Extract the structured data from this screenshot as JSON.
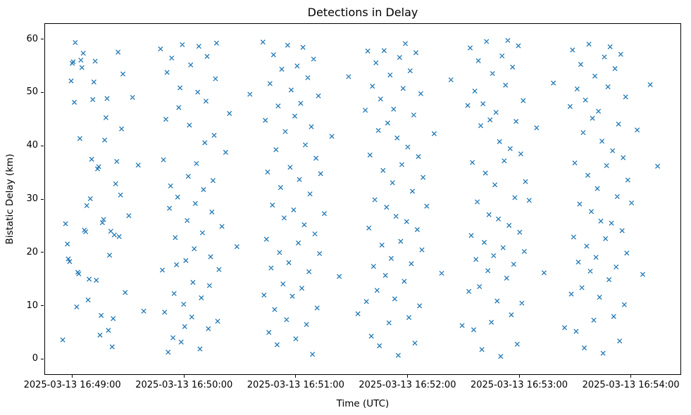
{
  "chart_data": {
    "type": "scatter",
    "title": "Detections in Delay",
    "xlabel": "Time (UTC)",
    "ylabel": "Bistatic Delay (km)",
    "legend": "none",
    "grid": false,
    "marker": "x",
    "marker_color": "#1f77b4",
    "ylim": [
      -3,
      63
    ],
    "yticks": [
      0,
      10,
      20,
      30,
      40,
      50,
      60
    ],
    "x_axis": {
      "t_range_seconds": [
        0,
        342
      ],
      "t_zero": "2025-03-13 16:48:45",
      "tick_t_seconds": [
        15,
        75,
        135,
        195,
        255,
        315
      ],
      "tick_labels": [
        "2025-03-13 16:49:00",
        "2025-03-13 16:50:00",
        "2025-03-13 16:51:00",
        "2025-03-13 16:52:00",
        "2025-03-13 16:53:00",
        "2025-03-13 16:54:00"
      ]
    },
    "points_format": [
      "seconds_after_t_zero",
      "bistatic_delay_km"
    ],
    "points": [
      [
        9.5,
        3.7
      ],
      [
        11,
        25.5
      ],
      [
        12,
        21.7
      ],
      [
        12.5,
        18.9
      ],
      [
        13.2,
        18.4
      ],
      [
        14,
        52.3
      ],
      [
        14.6,
        55.6
      ],
      [
        15.1,
        55.9
      ],
      [
        15.7,
        48.3
      ],
      [
        16.2,
        59.5
      ],
      [
        17,
        9.9
      ],
      [
        17.6,
        16.4
      ],
      [
        18.1,
        16.1
      ],
      [
        18.7,
        41.5
      ],
      [
        19.2,
        56.2
      ],
      [
        19.8,
        54.8
      ],
      [
        20.5,
        57.5
      ],
      [
        21.1,
        24.3
      ],
      [
        21.8,
        24.0
      ],
      [
        22.4,
        28.9
      ],
      [
        23.1,
        11.2
      ],
      [
        23.7,
        15.1
      ],
      [
        24.3,
        30.2
      ],
      [
        25,
        37.6
      ],
      [
        25.6,
        48.8
      ],
      [
        26.2,
        52.1
      ],
      [
        26.9,
        56.0
      ],
      [
        27.5,
        14.9
      ],
      [
        28.2,
        35.8
      ],
      [
        28.8,
        36.2
      ],
      [
        29.5,
        4.6
      ],
      [
        30.1,
        8.3
      ],
      [
        30.8,
        25.7
      ],
      [
        31.4,
        26.3
      ],
      [
        32,
        41.2
      ],
      [
        32.7,
        45.4
      ],
      [
        33.3,
        49.0
      ],
      [
        34,
        5.5
      ],
      [
        34.6,
        19.6
      ],
      [
        35.3,
        24.1
      ],
      [
        36,
        2.4
      ],
      [
        36.6,
        7.7
      ],
      [
        37.2,
        23.4
      ],
      [
        37.9,
        33.0
      ],
      [
        38.5,
        37.2
      ],
      [
        39.2,
        57.7
      ],
      [
        39.8,
        23.1
      ],
      [
        40.5,
        30.9
      ],
      [
        41.1,
        43.3
      ],
      [
        41.8,
        53.6
      ],
      [
        43,
        12.6
      ],
      [
        45,
        27.0
      ],
      [
        47,
        49.2
      ],
      [
        50,
        36.5
      ],
      [
        53,
        9.1
      ],
      [
        62,
        58.3
      ],
      [
        63,
        16.8
      ],
      [
        63.6,
        37.5
      ],
      [
        64.2,
        8.9
      ],
      [
        64.9,
        45.1
      ],
      [
        65.5,
        53.9
      ],
      [
        66.1,
        1.4
      ],
      [
        66.8,
        28.4
      ],
      [
        67.4,
        32.6
      ],
      [
        68,
        56.6
      ],
      [
        68.7,
        4.1
      ],
      [
        69.3,
        12.4
      ],
      [
        69.9,
        22.9
      ],
      [
        70.6,
        17.8
      ],
      [
        71.2,
        30.5
      ],
      [
        71.8,
        47.3
      ],
      [
        72.5,
        51.0
      ],
      [
        73.1,
        3.3
      ],
      [
        73.7,
        59.1
      ],
      [
        74.4,
        10.4
      ],
      [
        75,
        6.2
      ],
      [
        75.6,
        18.6
      ],
      [
        76.3,
        26.1
      ],
      [
        76.9,
        34.4
      ],
      [
        77.5,
        44.0
      ],
      [
        78.2,
        55.3
      ],
      [
        78.8,
        8.0
      ],
      [
        79.4,
        14.5
      ],
      [
        80.1,
        20.8
      ],
      [
        80.7,
        29.3
      ],
      [
        81.3,
        36.8
      ],
      [
        82,
        50.2
      ],
      [
        82.6,
        58.8
      ],
      [
        83.2,
        2.0
      ],
      [
        83.9,
        11.6
      ],
      [
        84.5,
        23.8
      ],
      [
        85.1,
        31.9
      ],
      [
        85.8,
        40.7
      ],
      [
        86.4,
        48.5
      ],
      [
        87,
        56.9
      ],
      [
        87.7,
        5.8
      ],
      [
        88.3,
        13.9
      ],
      [
        88.9,
        19.3
      ],
      [
        89.6,
        27.7
      ],
      [
        90.2,
        33.6
      ],
      [
        90.8,
        42.1
      ],
      [
        91.5,
        52.7
      ],
      [
        92.1,
        59.4
      ],
      [
        92.7,
        7.2
      ],
      [
        93.4,
        16.9
      ],
      [
        95,
        25.0
      ],
      [
        97,
        38.9
      ],
      [
        99,
        46.2
      ],
      [
        103,
        21.2
      ],
      [
        110,
        49.8
      ],
      [
        117,
        59.6
      ],
      [
        117.6,
        12.1
      ],
      [
        118.3,
        44.9
      ],
      [
        118.9,
        22.6
      ],
      [
        119.5,
        35.2
      ],
      [
        120.2,
        5.1
      ],
      [
        120.8,
        51.8
      ],
      [
        121.4,
        17.2
      ],
      [
        122.1,
        29.0
      ],
      [
        122.7,
        57.2
      ],
      [
        123.3,
        9.4
      ],
      [
        124,
        39.4
      ],
      [
        124.6,
        2.8
      ],
      [
        125.2,
        47.6
      ],
      [
        125.9,
        20.1
      ],
      [
        126.5,
        32.3
      ],
      [
        127.1,
        54.5
      ],
      [
        127.8,
        14.2
      ],
      [
        128.4,
        26.6
      ],
      [
        129,
        42.8
      ],
      [
        129.7,
        7.5
      ],
      [
        130.3,
        59.0
      ],
      [
        130.9,
        18.2
      ],
      [
        131.6,
        36.1
      ],
      [
        132.2,
        50.6
      ],
      [
        132.8,
        11.9
      ],
      [
        133.5,
        28.1
      ],
      [
        134.1,
        45.7
      ],
      [
        134.7,
        3.9
      ],
      [
        135.4,
        55.1
      ],
      [
        136,
        21.9
      ],
      [
        136.6,
        33.8
      ],
      [
        137.3,
        48.1
      ],
      [
        137.9,
        13.4
      ],
      [
        138.5,
        58.6
      ],
      [
        139.2,
        25.3
      ],
      [
        139.8,
        40.3
      ],
      [
        140.4,
        6.6
      ],
      [
        141.1,
        52.9
      ],
      [
        141.7,
        16.5
      ],
      [
        142.3,
        31.1
      ],
      [
        143,
        43.7
      ],
      [
        143.6,
        1.0
      ],
      [
        144.2,
        56.4
      ],
      [
        144.9,
        23.6
      ],
      [
        145.5,
        37.8
      ],
      [
        146.1,
        9.7
      ],
      [
        146.8,
        49.5
      ],
      [
        147.4,
        19.9
      ],
      [
        148,
        34.9
      ],
      [
        150,
        27.4
      ],
      [
        154,
        41.9
      ],
      [
        158,
        15.6
      ],
      [
        163,
        53.1
      ],
      [
        168,
        8.6
      ],
      [
        172,
        46.8
      ],
      [
        172.6,
        10.9
      ],
      [
        173.3,
        57.9
      ],
      [
        173.9,
        24.7
      ],
      [
        174.5,
        38.4
      ],
      [
        175.2,
        4.4
      ],
      [
        175.8,
        51.3
      ],
      [
        176.4,
        17.5
      ],
      [
        177.1,
        30.0
      ],
      [
        177.7,
        55.7
      ],
      [
        178.3,
        13.0
      ],
      [
        179,
        43.0
      ],
      [
        179.6,
        2.6
      ],
      [
        180.2,
        48.9
      ],
      [
        180.9,
        21.5
      ],
      [
        181.5,
        35.5
      ],
      [
        182.1,
        58.0
      ],
      [
        182.8,
        15.8
      ],
      [
        183.4,
        28.6
      ],
      [
        184,
        44.4
      ],
      [
        184.7,
        6.9
      ],
      [
        185.3,
        53.4
      ],
      [
        185.9,
        19.0
      ],
      [
        186.6,
        33.2
      ],
      [
        187.2,
        47.0
      ],
      [
        187.8,
        11.4
      ],
      [
        188.5,
        26.9
      ],
      [
        189.1,
        41.6
      ],
      [
        189.7,
        0.8
      ],
      [
        190.4,
        56.7
      ],
      [
        191,
        22.2
      ],
      [
        191.6,
        36.6
      ],
      [
        192.3,
        50.9
      ],
      [
        192.9,
        14.7
      ],
      [
        193.5,
        59.3
      ],
      [
        194.2,
        25.9
      ],
      [
        194.8,
        39.9
      ],
      [
        195.4,
        7.9
      ],
      [
        196.1,
        54.2
      ],
      [
        196.7,
        18.0
      ],
      [
        197.3,
        31.6
      ],
      [
        198,
        45.9
      ],
      [
        198.6,
        3.1
      ],
      [
        199.2,
        57.6
      ],
      [
        199.9,
        24.4
      ],
      [
        200.5,
        38.1
      ],
      [
        201.1,
        10.1
      ],
      [
        201.8,
        49.9
      ],
      [
        202.4,
        20.6
      ],
      [
        203,
        34.2
      ],
      [
        205,
        28.8
      ],
      [
        209,
        42.4
      ],
      [
        213,
        16.2
      ],
      [
        218,
        52.5
      ],
      [
        224,
        6.4
      ],
      [
        227,
        47.7
      ],
      [
        227.6,
        12.8
      ],
      [
        228.3,
        58.5
      ],
      [
        228.9,
        23.3
      ],
      [
        229.5,
        37.0
      ],
      [
        230.2,
        5.6
      ],
      [
        230.8,
        50.4
      ],
      [
        231.4,
        18.8
      ],
      [
        232.1,
        29.6
      ],
      [
        232.7,
        56.1
      ],
      [
        233.3,
        13.7
      ],
      [
        234,
        43.9
      ],
      [
        234.6,
        1.9
      ],
      [
        235.2,
        48.0
      ],
      [
        235.9,
        22.0
      ],
      [
        236.5,
        35.0
      ],
      [
        237.1,
        59.7
      ],
      [
        237.8,
        16.7
      ],
      [
        238.4,
        27.2
      ],
      [
        239,
        45.0
      ],
      [
        239.7,
        7.0
      ],
      [
        240.3,
        53.7
      ],
      [
        240.9,
        19.5
      ],
      [
        241.6,
        32.8
      ],
      [
        242.2,
        46.4
      ],
      [
        242.8,
        11.0
      ],
      [
        243.5,
        26.4
      ],
      [
        244.1,
        40.9
      ],
      [
        244.7,
        0.6
      ],
      [
        245.4,
        57.0
      ],
      [
        246,
        21.0
      ],
      [
        246.6,
        37.3
      ],
      [
        247.3,
        51.5
      ],
      [
        247.9,
        15.3
      ],
      [
        248.5,
        59.9
      ],
      [
        249.2,
        25.2
      ],
      [
        249.8,
        39.6
      ],
      [
        250.4,
        8.4
      ],
      [
        251.1,
        54.9
      ],
      [
        251.7,
        17.9
      ],
      [
        252.3,
        30.4
      ],
      [
        253,
        44.7
      ],
      [
        253.6,
        2.9
      ],
      [
        254.2,
        58.9
      ],
      [
        254.9,
        23.9
      ],
      [
        255.5,
        38.6
      ],
      [
        256.1,
        10.6
      ],
      [
        256.8,
        48.6
      ],
      [
        257.4,
        20.3
      ],
      [
        258,
        33.4
      ],
      [
        260,
        29.9
      ],
      [
        264,
        43.5
      ],
      [
        268,
        16.3
      ],
      [
        273,
        51.9
      ],
      [
        279,
        6.0
      ],
      [
        282,
        47.5
      ],
      [
        282.6,
        12.3
      ],
      [
        283.3,
        58.1
      ],
      [
        283.9,
        23.0
      ],
      [
        284.5,
        36.9
      ],
      [
        285.2,
        5.3
      ],
      [
        285.8,
        50.8
      ],
      [
        286.4,
        18.3
      ],
      [
        287.1,
        29.2
      ],
      [
        287.7,
        55.4
      ],
      [
        288.3,
        13.5
      ],
      [
        289,
        42.6
      ],
      [
        289.6,
        2.2
      ],
      [
        290.2,
        48.7
      ],
      [
        290.9,
        21.3
      ],
      [
        291.5,
        34.6
      ],
      [
        292.1,
        59.2
      ],
      [
        292.8,
        16.6
      ],
      [
        293.4,
        27.8
      ],
      [
        294,
        45.3
      ],
      [
        294.7,
        7.4
      ],
      [
        295.3,
        53.2
      ],
      [
        295.9,
        19.2
      ],
      [
        296.6,
        32.1
      ],
      [
        297.2,
        46.6
      ],
      [
        297.8,
        11.7
      ],
      [
        298.5,
        26.0
      ],
      [
        299.1,
        41.0
      ],
      [
        299.7,
        1.2
      ],
      [
        300.4,
        56.8
      ],
      [
        301,
        22.7
      ],
      [
        301.6,
        36.4
      ],
      [
        302.3,
        51.2
      ],
      [
        302.9,
        15.0
      ],
      [
        303.5,
        58.7
      ],
      [
        304.2,
        25.6
      ],
      [
        304.8,
        39.2
      ],
      [
        305.4,
        8.1
      ],
      [
        306.1,
        54.6
      ],
      [
        306.7,
        17.4
      ],
      [
        307.3,
        30.6
      ],
      [
        308,
        44.2
      ],
      [
        308.6,
        3.5
      ],
      [
        309.2,
        57.3
      ],
      [
        309.9,
        24.2
      ],
      [
        310.5,
        37.9
      ],
      [
        311.1,
        10.3
      ],
      [
        311.8,
        49.3
      ],
      [
        312.4,
        20.0
      ],
      [
        313,
        33.7
      ],
      [
        315,
        29.4
      ],
      [
        318,
        43.1
      ],
      [
        321,
        16.0
      ],
      [
        325,
        51.6
      ],
      [
        329,
        36.3
      ]
    ]
  }
}
